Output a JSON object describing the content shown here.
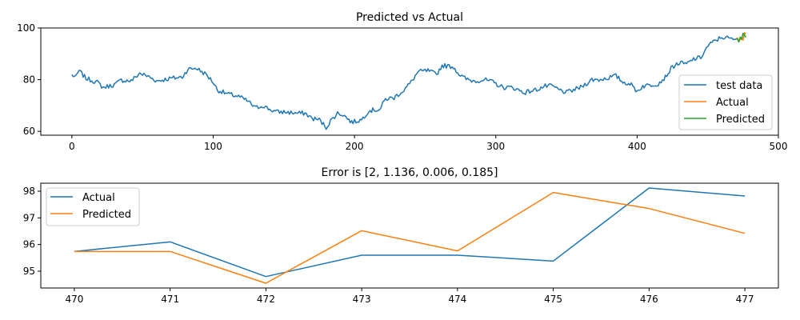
{
  "chart_data": [
    {
      "type": "line",
      "title": "Predicted vs Actual",
      "xlim": [
        -22,
        500
      ],
      "ylim": [
        58.5,
        100
      ],
      "xticks": [
        0,
        100,
        200,
        300,
        400,
        500
      ],
      "yticks": [
        60,
        80,
        100
      ],
      "xtick_labels": [
        "0",
        "100",
        "200",
        "300",
        "400",
        "500"
      ],
      "ytick_labels": [
        "60",
        "80",
        "100"
      ],
      "legend_position": "lower-right",
      "series": [
        {
          "name": "test data",
          "color": "#1f77b4",
          "anchors": [
            [
              0,
              81.8
            ],
            [
              3,
              81
            ],
            [
              5,
              83.5
            ],
            [
              10,
              80.5
            ],
            [
              18,
              79
            ],
            [
              22,
              77
            ],
            [
              30,
              78
            ],
            [
              35,
              79.8
            ],
            [
              42,
              79.5
            ],
            [
              48,
              82.5
            ],
            [
              55,
              81
            ],
            [
              60,
              79.5
            ],
            [
              70,
              80.5
            ],
            [
              78,
              81
            ],
            [
              82,
              84
            ],
            [
              88,
              84.5
            ],
            [
              95,
              82
            ],
            [
              100,
              79
            ],
            [
              103,
              76
            ],
            [
              110,
              74.5
            ],
            [
              118,
              73.5
            ],
            [
              125,
              71.5
            ],
            [
              130,
              69
            ],
            [
              135,
              70
            ],
            [
              140,
              68.5
            ],
            [
              145,
              67.5
            ],
            [
              150,
              67.5
            ],
            [
              160,
              67
            ],
            [
              165,
              67
            ],
            [
              170,
              65
            ],
            [
              175,
              64.5
            ],
            [
              180,
              61.5
            ],
            [
              183,
              64
            ],
            [
              188,
              67
            ],
            [
              192,
              66.5
            ],
            [
              198,
              63.5
            ],
            [
              205,
              64.5
            ],
            [
              210,
              68
            ],
            [
              218,
              68.5
            ],
            [
              222,
              72.5
            ],
            [
              228,
              73
            ],
            [
              235,
              76
            ],
            [
              240,
              79
            ],
            [
              245,
              83
            ],
            [
              252,
              83.5
            ],
            [
              258,
              82
            ],
            [
              262,
              85.5
            ],
            [
              270,
              85
            ],
            [
              275,
              81.5
            ],
            [
              280,
              80
            ],
            [
              285,
              79.5
            ],
            [
              292,
              80
            ],
            [
              298,
              79
            ],
            [
              305,
              77
            ],
            [
              312,
              77
            ],
            [
              320,
              75
            ],
            [
              328,
              76
            ],
            [
              335,
              77.5
            ],
            [
              340,
              77.5
            ],
            [
              345,
              76
            ],
            [
              350,
              75
            ],
            [
              355,
              76
            ],
            [
              360,
              77
            ],
            [
              368,
              80
            ],
            [
              373,
              80
            ],
            [
              378,
              80.5
            ],
            [
              385,
              81.5
            ],
            [
              390,
              79
            ],
            [
              395,
              78.5
            ],
            [
              400,
              75.5
            ],
            [
              404,
              77.5
            ],
            [
              410,
              78
            ],
            [
              415,
              78.5
            ],
            [
              420,
              81
            ],
            [
              425,
              85
            ],
            [
              430,
              86.5
            ],
            [
              435,
              86
            ],
            [
              440,
              88
            ],
            [
              445,
              88.5
            ],
            [
              450,
              93
            ],
            [
              455,
              95
            ],
            [
              460,
              96.5
            ],
            [
              465,
              96
            ],
            [
              468,
              95.5
            ],
            [
              470,
              95.7
            ],
            [
              471,
              96.1
            ],
            [
              472,
              94.8
            ],
            [
              473,
              95.6
            ],
            [
              474,
              95.6
            ],
            [
              475,
              95.4
            ],
            [
              476,
              98.1
            ],
            [
              477,
              97.8
            ]
          ]
        },
        {
          "name": "Actual",
          "color": "#ff7f0e",
          "points": [
            [
              470,
              95.74
            ],
            [
              471,
              96.1
            ],
            [
              472,
              94.8
            ],
            [
              473,
              95.6
            ],
            [
              474,
              95.6
            ],
            [
              475,
              95.38
            ],
            [
              476,
              98.12
            ],
            [
              477,
              97.82
            ]
          ]
        },
        {
          "name": "Predicted",
          "color": "#2ca02c",
          "points": [
            [
              470,
              95.74
            ],
            [
              471,
              95.74
            ],
            [
              472,
              94.55
            ],
            [
              473,
              96.52
            ],
            [
              474,
              95.76
            ],
            [
              475,
              97.95
            ],
            [
              476,
              97.35
            ],
            [
              477,
              96.42
            ]
          ]
        }
      ]
    },
    {
      "type": "line",
      "title": "Error is [2, 1.136, 0.006, 0.185]",
      "xlim": [
        469.65,
        477.35
      ],
      "ylim": [
        94.37,
        98.3
      ],
      "xticks": [
        470,
        471,
        472,
        473,
        474,
        475,
        476,
        477
      ],
      "yticks": [
        95,
        96,
        97,
        98
      ],
      "xtick_labels": [
        "470",
        "471",
        "472",
        "473",
        "474",
        "475",
        "476",
        "477"
      ],
      "ytick_labels": [
        "95",
        "96",
        "97",
        "98"
      ],
      "legend_position": "upper-left",
      "series": [
        {
          "name": "Actual",
          "color": "#1f77b4",
          "x": [
            470,
            471,
            472,
            473,
            474,
            475,
            476,
            477
          ],
          "values": [
            95.74,
            96.1,
            94.8,
            95.6,
            95.6,
            95.38,
            98.12,
            97.82
          ]
        },
        {
          "name": "Predicted",
          "color": "#ff7f0e",
          "x": [
            470,
            471,
            472,
            473,
            474,
            475,
            476,
            477
          ],
          "values": [
            95.74,
            95.74,
            94.55,
            96.52,
            95.76,
            97.95,
            97.35,
            96.42
          ]
        }
      ]
    }
  ]
}
